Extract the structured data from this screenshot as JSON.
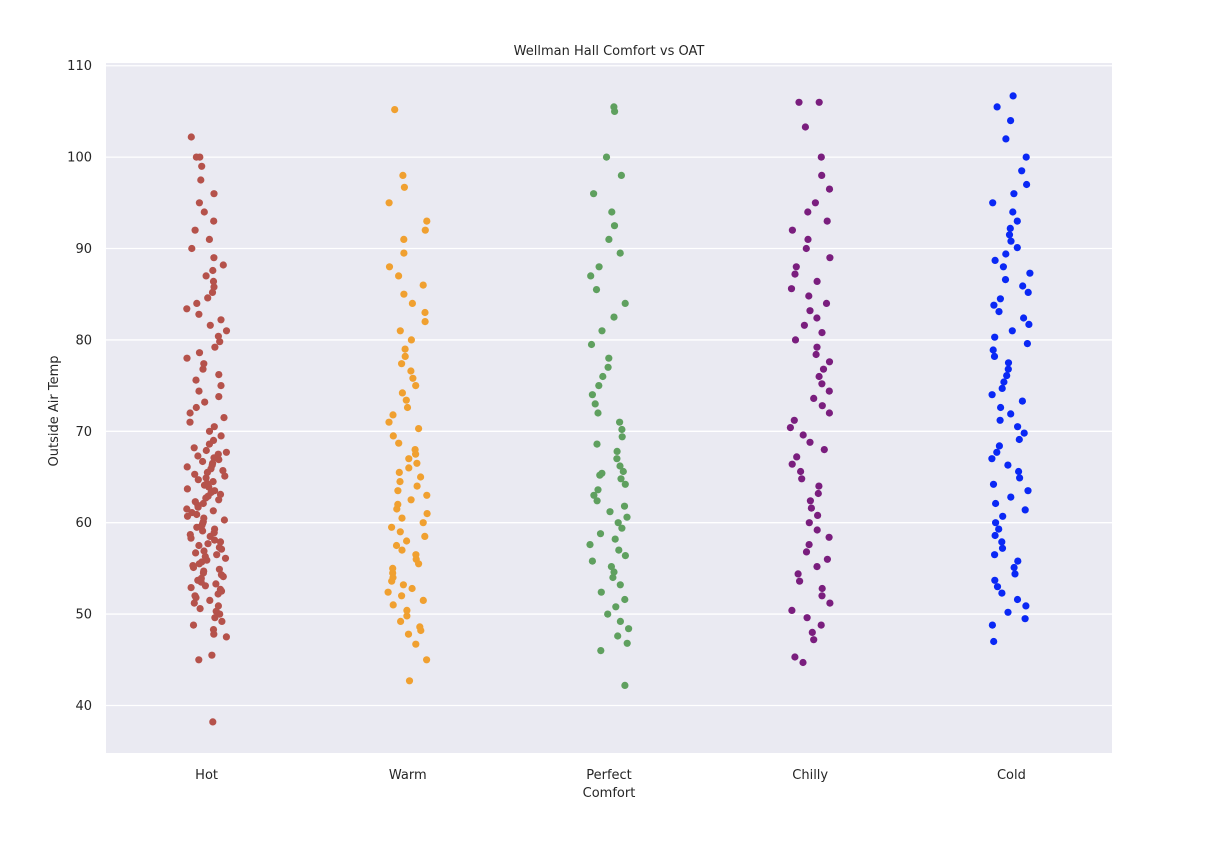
{
  "chart_data": {
    "type": "scatter",
    "subtype": "strip",
    "title": "Wellman Hall Comfort vs OAT",
    "xlabel": "Comfort",
    "ylabel": "Outside Air Temp",
    "categories": [
      "Hot",
      "Warm",
      "Perfect",
      "Chilly",
      "Cold"
    ],
    "ylim": [
      34.8,
      110.3
    ],
    "yticks": [
      40,
      50,
      60,
      70,
      80,
      90,
      100,
      110
    ],
    "grid": true,
    "background": "#EAEAF2",
    "series": [
      {
        "category": "Hot",
        "color": "#B5524B",
        "values": [
          38.2,
          45.0,
          45.5,
          47.5,
          47.8,
          48.3,
          48.8,
          49.2,
          49.6,
          50.0,
          50.3,
          50.6,
          50.9,
          51.2,
          51.5,
          51.8,
          52.0,
          52.2,
          52.5,
          52.7,
          52.9,
          53.1,
          53.3,
          53.5,
          53.7,
          53.9,
          54.1,
          54.3,
          54.5,
          54.7,
          54.9,
          55.1,
          55.3,
          55.5,
          55.7,
          55.9,
          56.1,
          56.3,
          56.5,
          56.7,
          56.9,
          57.1,
          57.3,
          57.5,
          57.7,
          57.9,
          58.1,
          58.3,
          58.5,
          58.7,
          58.9,
          59.1,
          59.3,
          59.5,
          59.7,
          59.9,
          60.1,
          60.3,
          60.5,
          60.7,
          60.9,
          61.1,
          61.3,
          61.5,
          61.7,
          61.9,
          62.1,
          62.3,
          62.5,
          62.7,
          62.9,
          63.1,
          63.3,
          63.5,
          63.7,
          63.9,
          64.1,
          64.3,
          64.5,
          64.7,
          64.9,
          65.1,
          65.3,
          65.5,
          65.7,
          65.9,
          66.1,
          66.3,
          66.5,
          66.7,
          66.9,
          67.1,
          67.3,
          67.5,
          67.7,
          67.9,
          68.2,
          68.6,
          69.0,
          69.5,
          70.0,
          70.5,
          71.0,
          71.5,
          72.0,
          72.6,
          73.2,
          73.8,
          74.4,
          75.0,
          75.6,
          76.2,
          76.8,
          77.4,
          78.0,
          78.6,
          79.2,
          79.8,
          80.4,
          81.0,
          81.6,
          82.2,
          82.8,
          83.4,
          84.0,
          84.6,
          85.2,
          85.8,
          86.4,
          87.0,
          87.6,
          88.2,
          89.0,
          90.0,
          91.0,
          92.0,
          93.0,
          94.0,
          95.0,
          96.0,
          97.5,
          99.0,
          100.0,
          100.0,
          102.2
        ]
      },
      {
        "category": "Warm",
        "color": "#F0A030",
        "values": [
          42.7,
          45.0,
          46.7,
          47.8,
          48.2,
          48.6,
          49.2,
          49.8,
          50.4,
          51.0,
          51.5,
          52.0,
          52.4,
          52.8,
          53.2,
          53.6,
          54.0,
          54.5,
          55.0,
          55.5,
          56.0,
          56.5,
          57.0,
          57.5,
          58.0,
          58.5,
          59.0,
          59.5,
          60.0,
          60.5,
          61.0,
          61.5,
          62.0,
          62.5,
          63.0,
          63.5,
          64.0,
          64.5,
          65.0,
          65.5,
          66.0,
          66.5,
          67.0,
          67.5,
          68.0,
          68.7,
          69.5,
          70.3,
          71.0,
          71.8,
          72.6,
          73.4,
          74.2,
          75.0,
          75.8,
          76.6,
          77.4,
          78.2,
          79.0,
          80.0,
          81.0,
          82.0,
          83.0,
          84.0,
          85.0,
          86.0,
          87.0,
          88.0,
          89.5,
          91.0,
          92.0,
          93.0,
          95.0,
          96.7,
          98.0,
          105.2
        ]
      },
      {
        "category": "Perfect",
        "color": "#5FA05F",
        "values": [
          42.2,
          46.0,
          46.8,
          47.6,
          48.4,
          49.2,
          50.0,
          50.8,
          51.6,
          52.4,
          53.2,
          54.0,
          54.6,
          55.2,
          55.8,
          56.4,
          57.0,
          57.6,
          58.2,
          58.8,
          59.4,
          60.0,
          60.6,
          61.2,
          61.8,
          62.4,
          63.0,
          63.6,
          64.2,
          64.8,
          65.2,
          65.4,
          65.6,
          66.2,
          67.0,
          67.8,
          68.6,
          69.4,
          70.2,
          71.0,
          72.0,
          73.0,
          74.0,
          75.0,
          76.0,
          77.0,
          78.0,
          79.5,
          81.0,
          82.5,
          84.0,
          85.5,
          87.0,
          88.0,
          89.5,
          91.0,
          92.5,
          94.0,
          96.0,
          98.0,
          100.0,
          105.0,
          105.5
        ]
      },
      {
        "category": "Chilly",
        "color": "#7A1E7E",
        "values": [
          44.7,
          45.3,
          47.2,
          48.0,
          48.8,
          49.6,
          50.4,
          51.2,
          52.0,
          52.8,
          53.6,
          54.4,
          55.2,
          56.0,
          56.8,
          57.6,
          58.4,
          59.2,
          60.0,
          60.8,
          61.6,
          62.4,
          63.2,
          64.0,
          64.8,
          65.6,
          66.4,
          67.2,
          68.0,
          68.8,
          69.6,
          70.4,
          71.2,
          72.0,
          72.8,
          73.6,
          74.4,
          75.2,
          76.0,
          76.8,
          77.6,
          78.4,
          79.2,
          80.0,
          80.8,
          81.6,
          82.4,
          83.2,
          84.0,
          84.8,
          85.6,
          86.4,
          87.2,
          88.0,
          89.0,
          90.0,
          91.0,
          92.0,
          93.0,
          94.0,
          95.0,
          96.5,
          98.0,
          100.0,
          103.3,
          106.0,
          106.0
        ]
      },
      {
        "category": "Cold",
        "color": "#0A28F5",
        "values": [
          47.0,
          48.8,
          49.5,
          50.2,
          50.9,
          51.6,
          52.3,
          53.0,
          53.7,
          54.4,
          55.1,
          55.8,
          56.5,
          57.2,
          57.9,
          58.6,
          59.3,
          60.0,
          60.7,
          61.4,
          62.1,
          62.8,
          63.5,
          64.2,
          64.9,
          65.6,
          66.3,
          67.0,
          67.7,
          68.4,
          69.1,
          69.8,
          70.5,
          71.2,
          71.9,
          72.6,
          73.3,
          74.0,
          74.7,
          75.4,
          76.1,
          76.8,
          77.5,
          78.2,
          78.9,
          79.6,
          80.3,
          81.0,
          81.7,
          82.4,
          83.1,
          83.8,
          84.5,
          85.2,
          85.9,
          86.6,
          87.3,
          88.0,
          88.7,
          89.4,
          90.1,
          90.8,
          91.5,
          92.2,
          93.0,
          94.0,
          95.0,
          96.0,
          97.0,
          98.5,
          100.0,
          102.0,
          104.0,
          105.5,
          106.7
        ]
      }
    ]
  }
}
